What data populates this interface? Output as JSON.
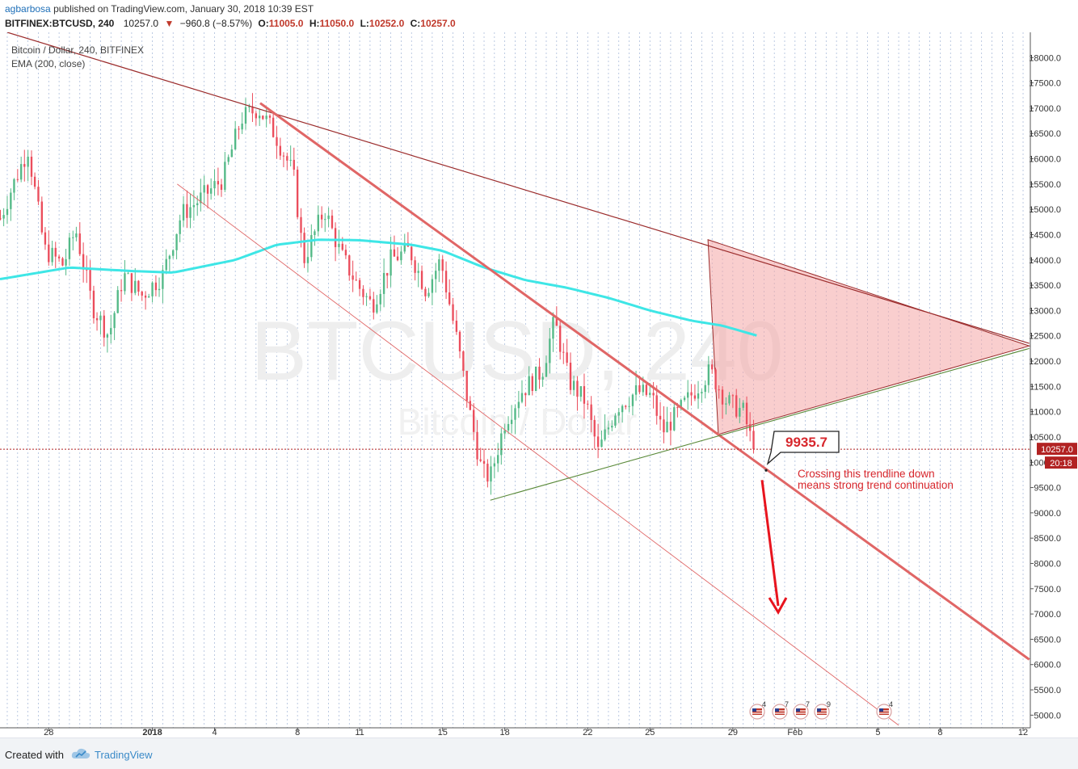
{
  "header": {
    "author": "agbarbosa",
    "published_text": "published on TradingView.com, January 30, 2018 10:39 EST",
    "symbol": "BITFINEX:BTCUSD, 240",
    "last": "10257.0",
    "change_arrow": "▼",
    "change": "−960.8 (−8.57%)",
    "o_label": "O:",
    "o_value": "11005.0",
    "h_label": "H:",
    "h_value": "11050.0",
    "l_label": "L:",
    "l_value": "10252.0",
    "c_label": "C:",
    "c_value": "10257.0"
  },
  "legend": {
    "series_title": "Bitcoin / Dollar, 240, BITFINEX",
    "indicator": "EMA (200, close)"
  },
  "watermark": {
    "symbol": "BTCUSD, 240",
    "name": "Bitcoin / Dollar"
  },
  "price_tags": {
    "last_price": "10257.0",
    "countdown": "20:18"
  },
  "annotations": {
    "target_label": "9935.7",
    "note_line1": "Crossing this trendline down",
    "note_line2": "means strong trend continuation"
  },
  "event_markers": [
    {
      "count": "4"
    },
    {
      "count": "7"
    },
    {
      "count": "7"
    },
    {
      "count": "9"
    },
    {
      "count": "4"
    }
  ],
  "footer": {
    "created_with": "Created with",
    "brand": "TradingView"
  },
  "colors": {
    "bull": "#53b987",
    "bear": "#eb4d5c",
    "ema": "#3ee6e6",
    "trend_dark": "#9b2c2c",
    "trend_main": "#e06666",
    "trend_green": "#5a8a3a",
    "triangle_fill": "#f4a6a6",
    "arrow": "#e8141e",
    "grid_v": "#9fb3d6",
    "last_price_line": "#b22222",
    "note_text": "#d7262c",
    "brand": "#3a8ac8"
  },
  "chart_data": {
    "type": "candlestick",
    "title": "Bitcoin / Dollar, 240, BITFINEX",
    "ylim": [
      4750,
      18500
    ],
    "y_ticks": [
      5000,
      5500,
      6000,
      6500,
      7000,
      7500,
      8000,
      8500,
      9000,
      9500,
      10000,
      10500,
      11000,
      11500,
      12000,
      12500,
      13000,
      13500,
      14000,
      14500,
      15000,
      15500,
      16000,
      16500,
      17000,
      17500,
      18000
    ],
    "x_ticks": [
      "28",
      "2018",
      "4",
      "8",
      "11",
      "15",
      "18",
      "22",
      "25",
      "29",
      "Feb",
      "5",
      "8",
      "12"
    ],
    "x_tick_days": [
      -4,
      1,
      4,
      8,
      11,
      15,
      18,
      22,
      25,
      29,
      32,
      36,
      39,
      43
    ],
    "x_range_days": [
      -6.35,
      43.35
    ],
    "grid": "vertical dotted",
    "candle_days": [
      -6.33,
      -6.17,
      -6.0,
      -5.83,
      -5.67,
      -5.5,
      -5.33,
      -5.17,
      -5.0,
      -4.83,
      -4.67,
      -4.5,
      -4.33,
      -4.17,
      -4.0,
      -3.83,
      -3.67,
      -3.5,
      -3.33,
      -3.17,
      -3.0,
      -2.83,
      -2.67,
      -2.5,
      -2.33,
      -2.17,
      -2.0,
      -1.83,
      -1.67,
      -1.5,
      -1.33,
      -1.17,
      -1.0,
      -0.83,
      -0.67,
      -0.5,
      -0.33,
      -0.17,
      0.0,
      0.17,
      0.33,
      0.5,
      0.67,
      0.83,
      1.0,
      1.17,
      1.33,
      1.5,
      1.67,
      1.83,
      2.0,
      2.17,
      2.33,
      2.5,
      2.67,
      2.83,
      3.0,
      3.17,
      3.33,
      3.5,
      3.67,
      3.83,
      4.0,
      4.17,
      4.33,
      4.5,
      4.67,
      4.83,
      5.0,
      5.17,
      5.33,
      5.5,
      5.67,
      5.83,
      6.0,
      6.17,
      6.33,
      6.5,
      6.67,
      6.83,
      7.0,
      7.17,
      7.33,
      7.5,
      7.67,
      7.83,
      8.0,
      8.17,
      8.33,
      8.5,
      8.67,
      8.83,
      9.0,
      9.17,
      9.33,
      9.5,
      9.67,
      9.83,
      10.0,
      10.17,
      10.33,
      10.5,
      10.67,
      10.83,
      11.0,
      11.17,
      11.33,
      11.5,
      11.67,
      11.83,
      12.0,
      12.17,
      12.33,
      12.5,
      12.67,
      12.83,
      13.0,
      13.17,
      13.33,
      13.5,
      13.67,
      13.83,
      14.0,
      14.17,
      14.33,
      14.5,
      14.67,
      14.83,
      15.0,
      15.17,
      15.33,
      15.5,
      15.67,
      15.83,
      16.0,
      16.17,
      16.33,
      16.5,
      16.67,
      16.83,
      17.0,
      17.17,
      17.33,
      17.5,
      17.67,
      17.83,
      18.0,
      18.17,
      18.33,
      18.5,
      18.67,
      18.83,
      19.0,
      19.17,
      19.33,
      19.5,
      19.67,
      19.83,
      20.0,
      20.17,
      20.33,
      20.5,
      20.67,
      20.83,
      21.0,
      21.17,
      21.33,
      21.5,
      21.67,
      21.83,
      22.0,
      22.17,
      22.33,
      22.5,
      22.67,
      22.83,
      23.0,
      23.17,
      23.33,
      23.5,
      23.67,
      23.83,
      24.0,
      24.17,
      24.33,
      24.5,
      24.67,
      24.83,
      25.0,
      25.17,
      25.33,
      25.5,
      25.67,
      25.83,
      26.0,
      26.17,
      26.33,
      26.5,
      26.67,
      26.83,
      27.0,
      27.17,
      27.33,
      27.5,
      27.67,
      27.83,
      28.0,
      28.17,
      28.33,
      28.5,
      28.67,
      28.83,
      29.0,
      29.17,
      29.33,
      29.5,
      29.67,
      29.83,
      30.0
    ],
    "ohlc_anchors": [
      {
        "t": -6.35,
        "p": 14800
      },
      {
        "t": -5.8,
        "p": 15400
      },
      {
        "t": -5.0,
        "p": 16200
      },
      {
        "t": -4.2,
        "p": 14200
      },
      {
        "t": -3.3,
        "p": 13900
      },
      {
        "t": -2.7,
        "p": 14600
      },
      {
        "t": -1.9,
        "p": 13100
      },
      {
        "t": -1.1,
        "p": 12500
      },
      {
        "t": -0.4,
        "p": 13700
      },
      {
        "t": 0.5,
        "p": 13300
      },
      {
        "t": 1.5,
        "p": 13700
      },
      {
        "t": 2.4,
        "p": 14900
      },
      {
        "t": 3.3,
        "p": 15200
      },
      {
        "t": 4.4,
        "p": 15600
      },
      {
        "t": 5.3,
        "p": 16800
      },
      {
        "t": 6.1,
        "p": 17000
      },
      {
        "t": 6.9,
        "p": 16500
      },
      {
        "t": 7.8,
        "p": 15700
      },
      {
        "t": 8.3,
        "p": 14000
      },
      {
        "t": 9.3,
        "p": 15000
      },
      {
        "t": 10.1,
        "p": 14100
      },
      {
        "t": 10.9,
        "p": 13500
      },
      {
        "t": 11.6,
        "p": 13100
      },
      {
        "t": 12.5,
        "p": 14000
      },
      {
        "t": 13.4,
        "p": 14200
      },
      {
        "t": 14.2,
        "p": 13400
      },
      {
        "t": 14.9,
        "p": 14000
      },
      {
        "t": 15.7,
        "p": 12400
      },
      {
        "t": 16.3,
        "p": 11000
      },
      {
        "t": 16.9,
        "p": 9800
      },
      {
        "t": 17.3,
        "p": 9700
      },
      {
        "t": 18.0,
        "p": 10800
      },
      {
        "t": 18.8,
        "p": 11400
      },
      {
        "t": 19.8,
        "p": 11800
      },
      {
        "t": 20.4,
        "p": 12800
      },
      {
        "t": 21.1,
        "p": 11600
      },
      {
        "t": 21.9,
        "p": 11200
      },
      {
        "t": 22.5,
        "p": 10200
      },
      {
        "t": 23.4,
        "p": 11100
      },
      {
        "t": 24.4,
        "p": 11400
      },
      {
        "t": 25.1,
        "p": 11300
      },
      {
        "t": 25.6,
        "p": 10600
      },
      {
        "t": 26.4,
        "p": 11000
      },
      {
        "t": 27.3,
        "p": 11500
      },
      {
        "t": 27.9,
        "p": 11800
      },
      {
        "t": 28.7,
        "p": 11200
      },
      {
        "t": 29.5,
        "p": 11000
      },
      {
        "t": 30.0,
        "p": 10257
      }
    ],
    "ema_200": [
      {
        "t": -6.35,
        "p": 13620
      },
      {
        "t": -3.0,
        "p": 13850
      },
      {
        "t": 0,
        "p": 13780
      },
      {
        "t": 2.0,
        "p": 13750
      },
      {
        "t": 5.0,
        "p": 14000
      },
      {
        "t": 7.0,
        "p": 14300
      },
      {
        "t": 9.0,
        "p": 14400
      },
      {
        "t": 11.0,
        "p": 14390
      },
      {
        "t": 13.5,
        "p": 14300
      },
      {
        "t": 15.0,
        "p": 14180
      },
      {
        "t": 17.0,
        "p": 13850
      },
      {
        "t": 19.0,
        "p": 13600
      },
      {
        "t": 21.0,
        "p": 13450
      },
      {
        "t": 23.0,
        "p": 13250
      },
      {
        "t": 25.0,
        "p": 13000
      },
      {
        "t": 27.0,
        "p": 12800
      },
      {
        "t": 28.5,
        "p": 12700
      },
      {
        "t": 30.2,
        "p": 12500
      }
    ],
    "trendlines": [
      {
        "name": "upper-resistance",
        "from": {
          "t": -6.0,
          "p": 18500
        },
        "to": {
          "t": 43.3,
          "p": 12350
        }
      },
      {
        "name": "main-downtrend",
        "from": {
          "t": 6.2,
          "p": 17100
        },
        "to": {
          "t": 43.3,
          "p": 6100
        }
      },
      {
        "name": "lower-channel",
        "from": {
          "t": 2.2,
          "p": 15500
        },
        "to": {
          "t": 37.0,
          "p": 4800
        }
      },
      {
        "name": "rising-support",
        "from": {
          "t": 17.3,
          "p": 9250
        },
        "to": {
          "t": 43.3,
          "p": 12250
        }
      }
    ],
    "triangle": [
      {
        "t": 27.8,
        "p": 14400
      },
      {
        "t": 43.3,
        "p": 12300
      },
      {
        "t": 28.3,
        "p": 10550
      }
    ],
    "last_price": 10257.0,
    "target": 9935.7
  }
}
